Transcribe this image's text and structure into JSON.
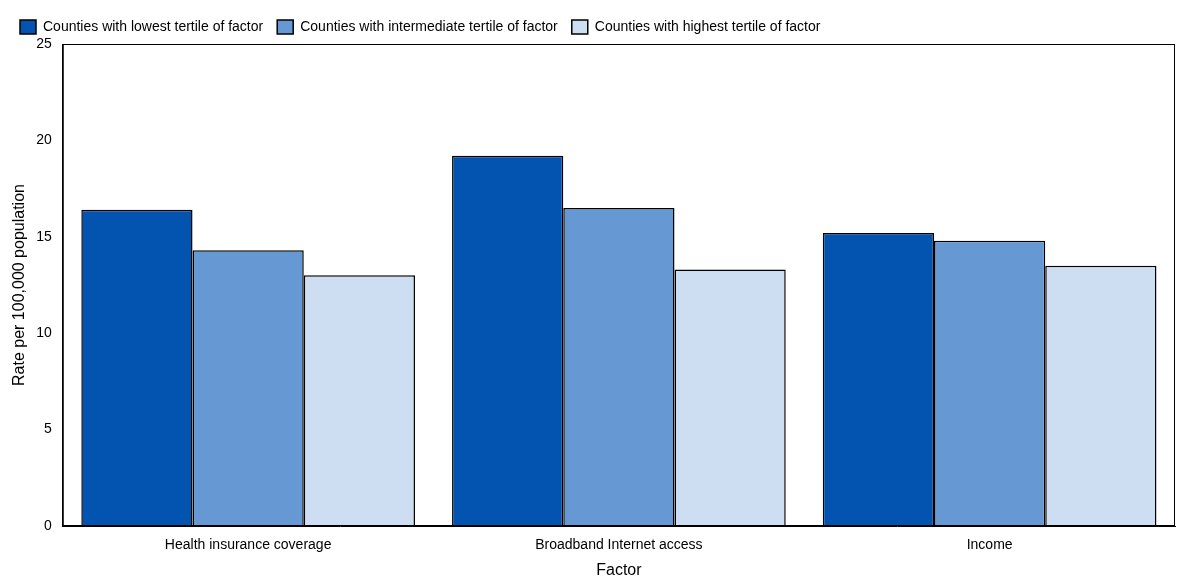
{
  "chart_data": {
    "type": "bar",
    "x_label": "Factor",
    "y_label": "Rate per 100,000 population",
    "categories": [
      "Health insurance coverage",
      "Broadband Internet access",
      "Income"
    ],
    "series": [
      {
        "name": "Counties with lowest tertile of factor",
        "color": "#0353b0",
        "values": [
          16.4,
          19.2,
          15.2
        ]
      },
      {
        "name": "Counties with intermediate tertile of factor",
        "color": "#6699d3",
        "values": [
          14.3,
          16.5,
          14.8
        ]
      },
      {
        "name": "Counties with highest tertile of factor",
        "color": "#cdddf2",
        "values": [
          13.0,
          13.3,
          13.5
        ]
      }
    ],
    "ylim": [
      0,
      25
    ],
    "yticks": [
      0,
      5,
      10,
      15,
      20,
      25
    ],
    "grid": false,
    "legend": "upper left"
  }
}
